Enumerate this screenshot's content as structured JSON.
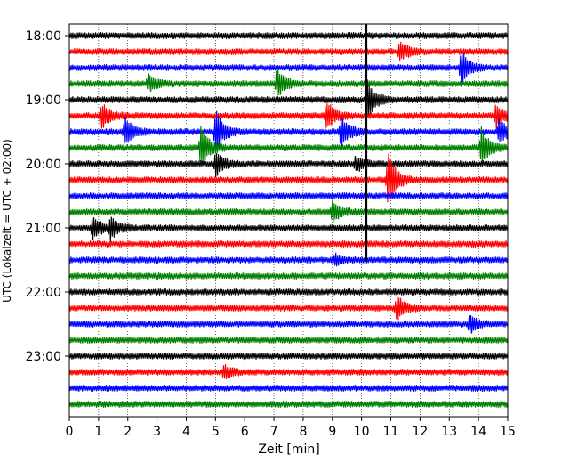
{
  "chart_data": {
    "type": "line",
    "xlabel": "Zeit  [min]",
    "ylabel": "UTC (Lokalzeit = UTC + 02:00)",
    "xlim": [
      0,
      15
    ],
    "x_ticks": [
      "0",
      "1",
      "2",
      "3",
      "4",
      "5",
      "6",
      "7",
      "8",
      "9",
      "10",
      "11",
      "12",
      "13",
      "14",
      "15"
    ],
    "y_ticks": [
      "18:00",
      "19:00",
      "20:00",
      "21:00",
      "22:00",
      "23:00"
    ],
    "trace_count": 24,
    "first_trace_time": "18:00",
    "trace_interval_min": 15,
    "trace_colors": [
      "#000000",
      "#ff0000",
      "#0000ff",
      "#008000"
    ],
    "grid": "vertical dotted",
    "marker_x": 10.15,
    "marker_time_range": [
      "18:00",
      "21:15"
    ],
    "events": [
      {
        "trace": 1,
        "x": 11.3,
        "amp": 0.8
      },
      {
        "trace": 2,
        "x": 13.4,
        "amp": 1.4
      },
      {
        "trace": 3,
        "x": 2.7,
        "amp": 0.7
      },
      {
        "trace": 3,
        "x": 7.1,
        "amp": 1.2
      },
      {
        "trace": 4,
        "x": 10.2,
        "amp": 1.5
      },
      {
        "trace": 5,
        "x": 1.1,
        "amp": 1.0
      },
      {
        "trace": 5,
        "x": 8.8,
        "amp": 1.2
      },
      {
        "trace": 5,
        "x": 14.6,
        "amp": 0.9
      },
      {
        "trace": 6,
        "x": 1.9,
        "amp": 1.2
      },
      {
        "trace": 6,
        "x": 5.0,
        "amp": 1.8
      },
      {
        "trace": 6,
        "x": 9.3,
        "amp": 1.3
      },
      {
        "trace": 6,
        "x": 14.7,
        "amp": 1.0
      },
      {
        "trace": 7,
        "x": 4.5,
        "amp": 1.8
      },
      {
        "trace": 7,
        "x": 14.1,
        "amp": 1.6
      },
      {
        "trace": 8,
        "x": 5.0,
        "amp": 1.0
      },
      {
        "trace": 8,
        "x": 9.8,
        "amp": 0.6
      },
      {
        "trace": 9,
        "x": 10.9,
        "amp": 2.2
      },
      {
        "trace": 11,
        "x": 9.0,
        "amp": 0.8
      },
      {
        "trace": 12,
        "x": 0.8,
        "amp": 1.0
      },
      {
        "trace": 12,
        "x": 1.4,
        "amp": 0.9
      },
      {
        "trace": 14,
        "x": 9.1,
        "amp": 0.4
      },
      {
        "trace": 17,
        "x": 11.2,
        "amp": 1.0
      },
      {
        "trace": 18,
        "x": 13.7,
        "amp": 0.7
      },
      {
        "trace": 21,
        "x": 5.3,
        "amp": 0.5
      }
    ]
  }
}
